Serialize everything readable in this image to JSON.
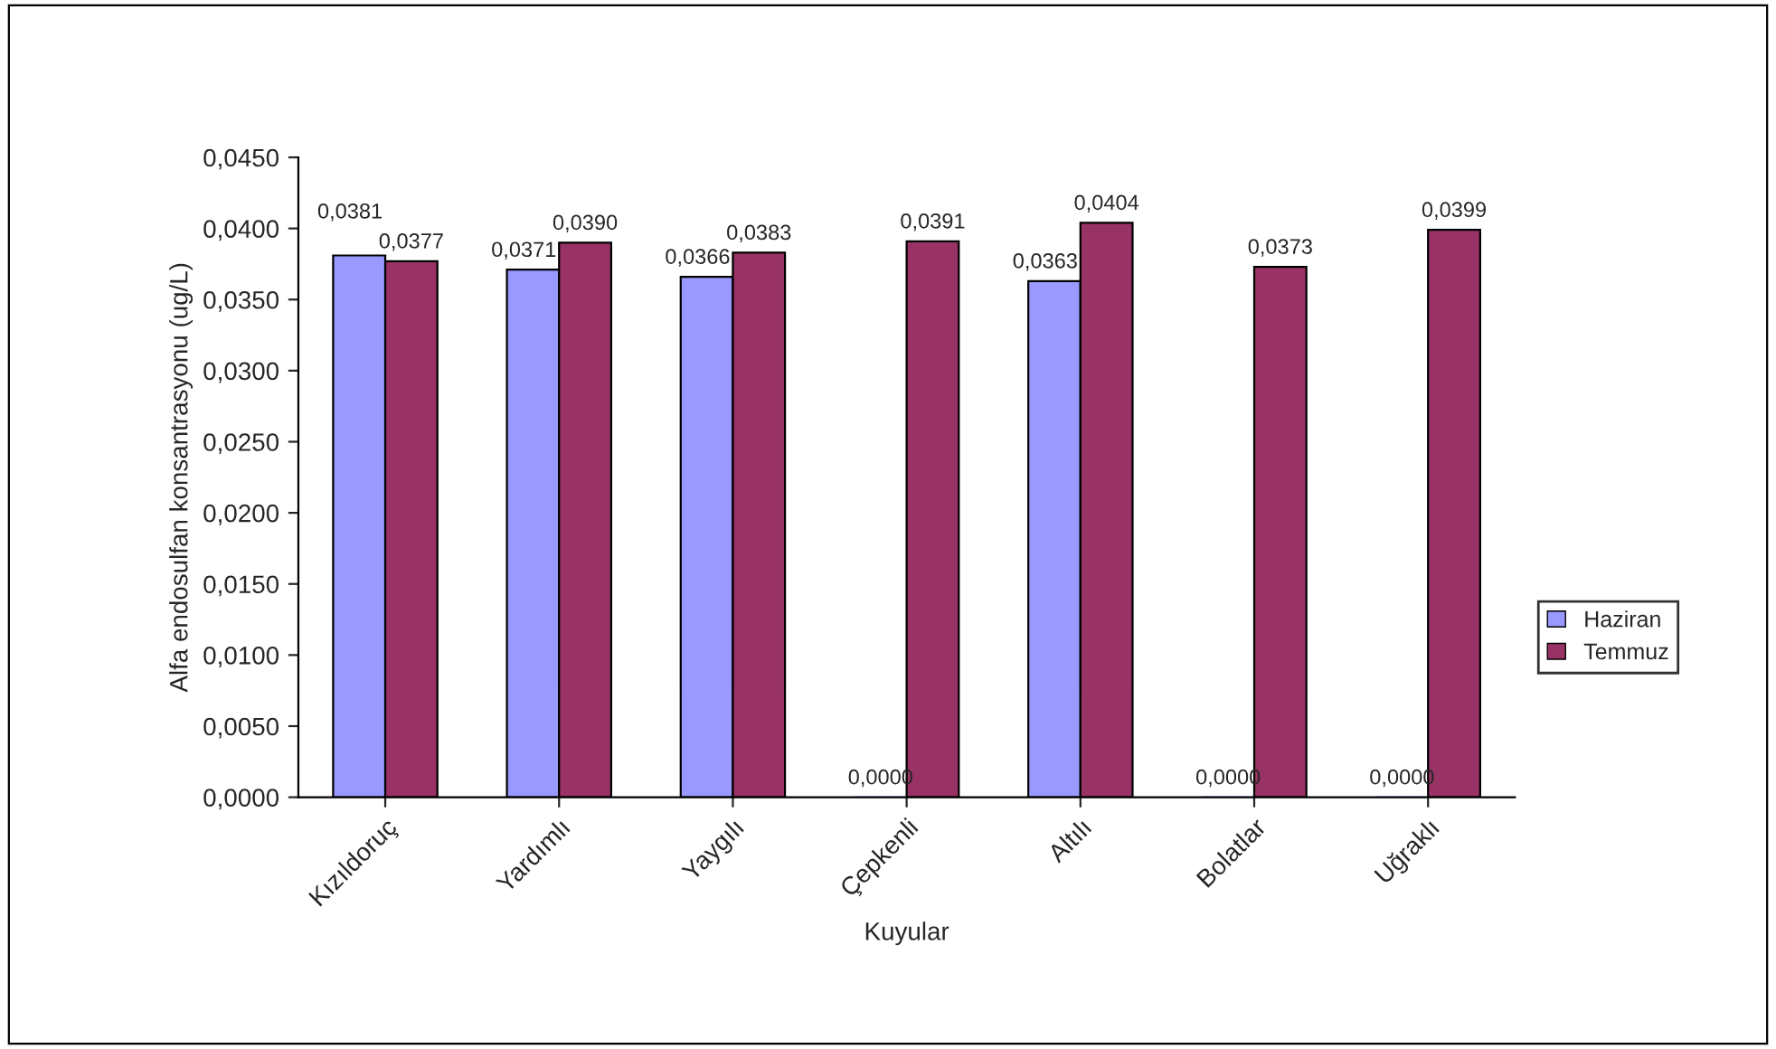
{
  "chart_data": {
    "type": "bar",
    "xlabel": "Kuyular",
    "ylabel": "Alfa endosulfan konsantrasyonu (ug/L)",
    "categories": [
      "Kızıldoruç",
      "Yardımlı",
      "Yaygılı",
      "Çepkenli",
      "Altılı",
      "Bolatlar",
      "Uğraklı"
    ],
    "series": [
      {
        "name": "Haziran",
        "color": "#9999ff",
        "values": [
          0.0381,
          0.0371,
          0.0366,
          0.0,
          0.0363,
          0.0,
          0.0
        ],
        "value_labels": [
          "0,0381",
          "0,0371",
          "0,0366",
          "0,0000",
          "0,0363",
          "0,0000",
          "0,0000"
        ]
      },
      {
        "name": "Temmuz",
        "color": "#993366",
        "values": [
          0.0377,
          0.039,
          0.0383,
          0.0391,
          0.0404,
          0.0373,
          0.0399
        ],
        "value_labels": [
          "0,0377",
          "0,0390",
          "0,0383",
          "0,0391",
          "0,0404",
          "0,0373",
          "0,0399"
        ]
      }
    ],
    "ylim": [
      0,
      0.045
    ],
    "yticks": [
      {
        "value": 0,
        "label": "0,0000"
      },
      {
        "value": 0.005,
        "label": "0,0050"
      },
      {
        "value": 0.01,
        "label": "0,0100"
      },
      {
        "value": 0.015,
        "label": "0,0150"
      },
      {
        "value": 0.02,
        "label": "0,0200"
      },
      {
        "value": 0.025,
        "label": "0,0250"
      },
      {
        "value": 0.03,
        "label": "0,0300"
      },
      {
        "value": 0.035,
        "label": "0,0350"
      },
      {
        "value": 0.04,
        "label": "0,0400"
      },
      {
        "value": 0.045,
        "label": "0,0450"
      }
    ],
    "grid": false,
    "legend": "right"
  }
}
